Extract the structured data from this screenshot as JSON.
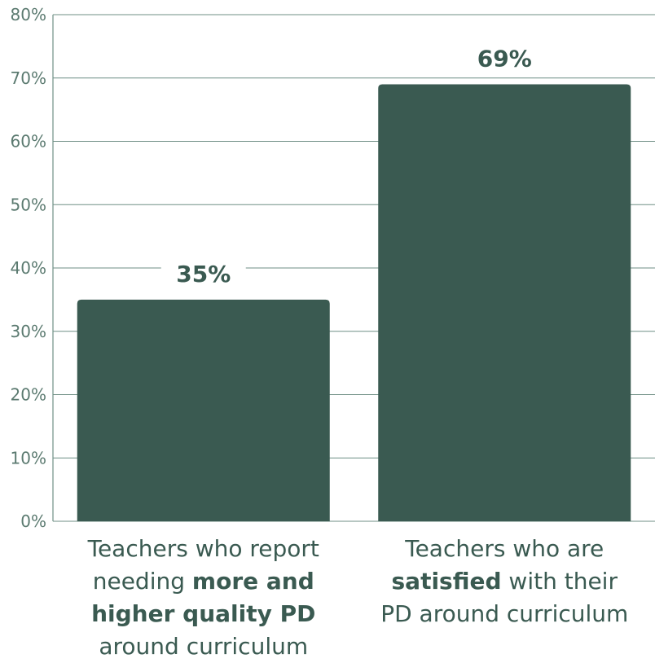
{
  "chart_data": {
    "type": "bar",
    "categories": [
      {
        "lines": [
          [
            {
              "text": "Teachers who report",
              "bold": false
            }
          ],
          [
            {
              "text": "needing ",
              "bold": false
            },
            {
              "text": "more and",
              "bold": true
            }
          ],
          [
            {
              "text": "higher quality PD",
              "bold": true
            }
          ],
          [
            {
              "text": "around curriculum",
              "bold": false
            }
          ]
        ]
      },
      {
        "lines": [
          [
            {
              "text": "Teachers who are",
              "bold": false
            }
          ],
          [
            {
              "text": "satisfied",
              "bold": true
            },
            {
              "text": " with their",
              "bold": false
            }
          ],
          [
            {
              "text": "PD around curriculum",
              "bold": false
            }
          ]
        ]
      }
    ],
    "values": [
      35,
      69
    ],
    "value_labels": [
      "35%",
      "69%"
    ],
    "title": "",
    "xlabel": "",
    "ylabel": "",
    "ylim": [
      0,
      80
    ],
    "yticks": [
      0,
      10,
      20,
      30,
      40,
      50,
      60,
      70,
      80
    ],
    "ytick_labels": [
      "0%",
      "10%",
      "20%",
      "30%",
      "40%",
      "50%",
      "60%",
      "70%",
      "80%"
    ],
    "grid": true,
    "legend": "none",
    "colors": {
      "bar": "#3a5a51",
      "grid": "#6f8f85",
      "tick_text": "#5b7a70"
    }
  }
}
